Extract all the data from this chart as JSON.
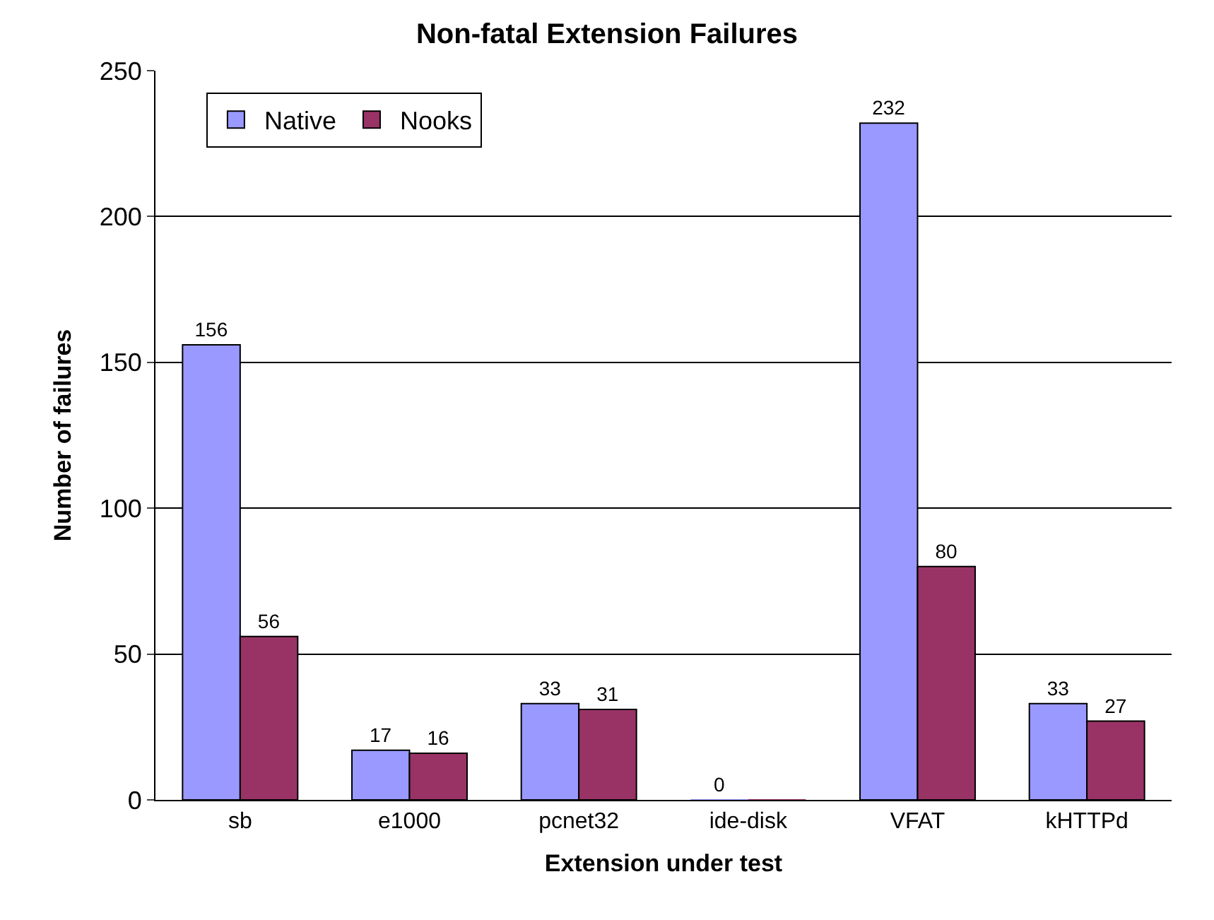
{
  "chart_data": {
    "type": "bar",
    "title": "Non-fatal Extension Failures",
    "xlabel": "Extension under test",
    "ylabel": "Number of failures",
    "categories": [
      "sb",
      "e1000",
      "pcnet32",
      "ide-disk",
      "VFAT",
      "kHTTPd"
    ],
    "series": [
      {
        "name": "Native",
        "color": "#9999ff",
        "values": [
          156,
          17,
          33,
          0,
          232,
          33
        ],
        "value_labels": [
          "156",
          "17",
          "33",
          "0",
          "232",
          "33"
        ]
      },
      {
        "name": "Nooks",
        "color": "#993366",
        "values": [
          56,
          16,
          31,
          0,
          80,
          27
        ],
        "value_labels": [
          "56",
          "16",
          "31",
          null,
          "80",
          "27"
        ]
      }
    ],
    "ylim": [
      0,
      250
    ],
    "yticks": [
      0,
      50,
      100,
      150,
      200,
      250
    ],
    "grid": "y",
    "legend": "top left"
  }
}
